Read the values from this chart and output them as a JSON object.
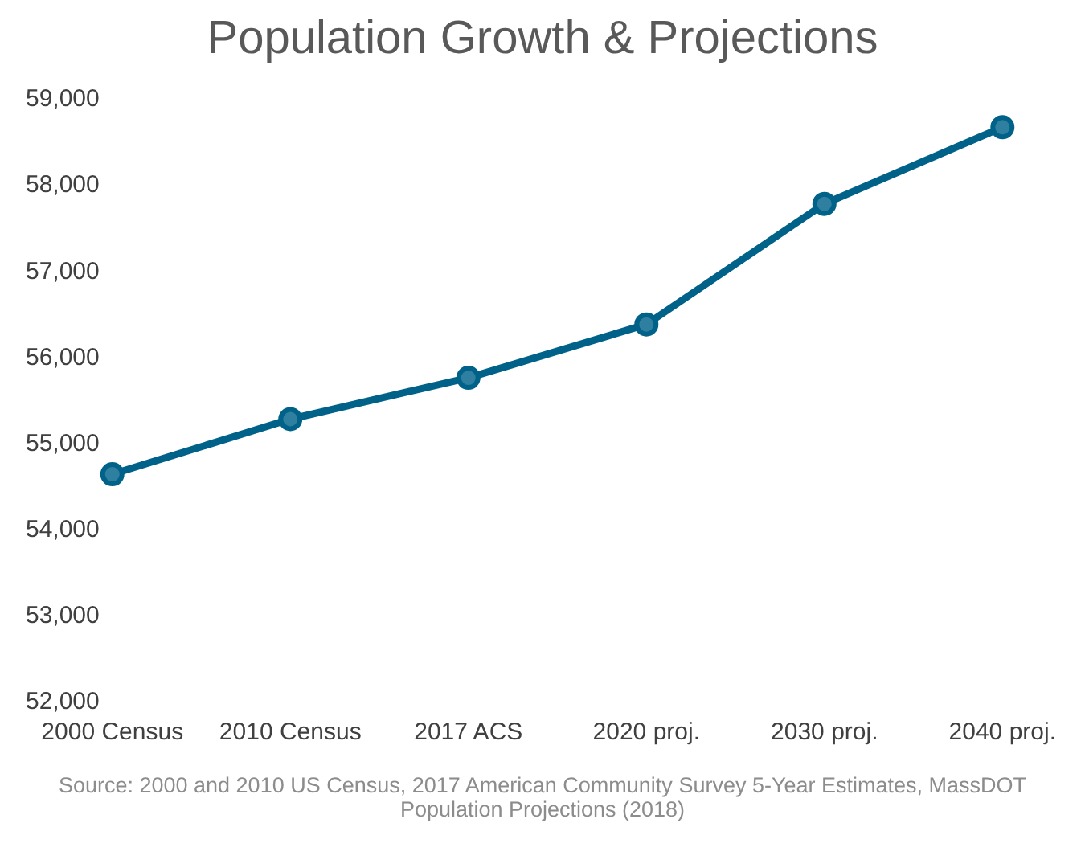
{
  "chart_data": {
    "type": "line",
    "title": "Population Growth & Projections",
    "categories": [
      "2000 Census",
      "2010 Census",
      "2017 ACS",
      "2020 proj.",
      "2030 proj.",
      "2040 proj."
    ],
    "series": [
      {
        "color": "#006288",
        "values": [
          54650,
          55290,
          55770,
          56390,
          57790,
          58680
        ]
      }
    ],
    "ylim": [
      52000,
      59000
    ],
    "yticks": [
      {
        "value": 52000,
        "label": "52,000"
      },
      {
        "value": 53000,
        "label": "53,000"
      },
      {
        "value": 54000,
        "label": "54,000"
      },
      {
        "value": 55000,
        "label": "55,000"
      },
      {
        "value": 56000,
        "label": "56,000"
      },
      {
        "value": 57000,
        "label": "57,000"
      },
      {
        "value": 58000,
        "label": "58,000"
      },
      {
        "value": 59000,
        "label": "59,000"
      }
    ],
    "grid": false,
    "legend": false,
    "marker": "circle",
    "line_style": "solid",
    "annotations": [
      "Source: 2000 and 2010 US Census, 2017 American Community Survey 5-Year Estimates, MassDOT Population Projections (2018)"
    ]
  }
}
